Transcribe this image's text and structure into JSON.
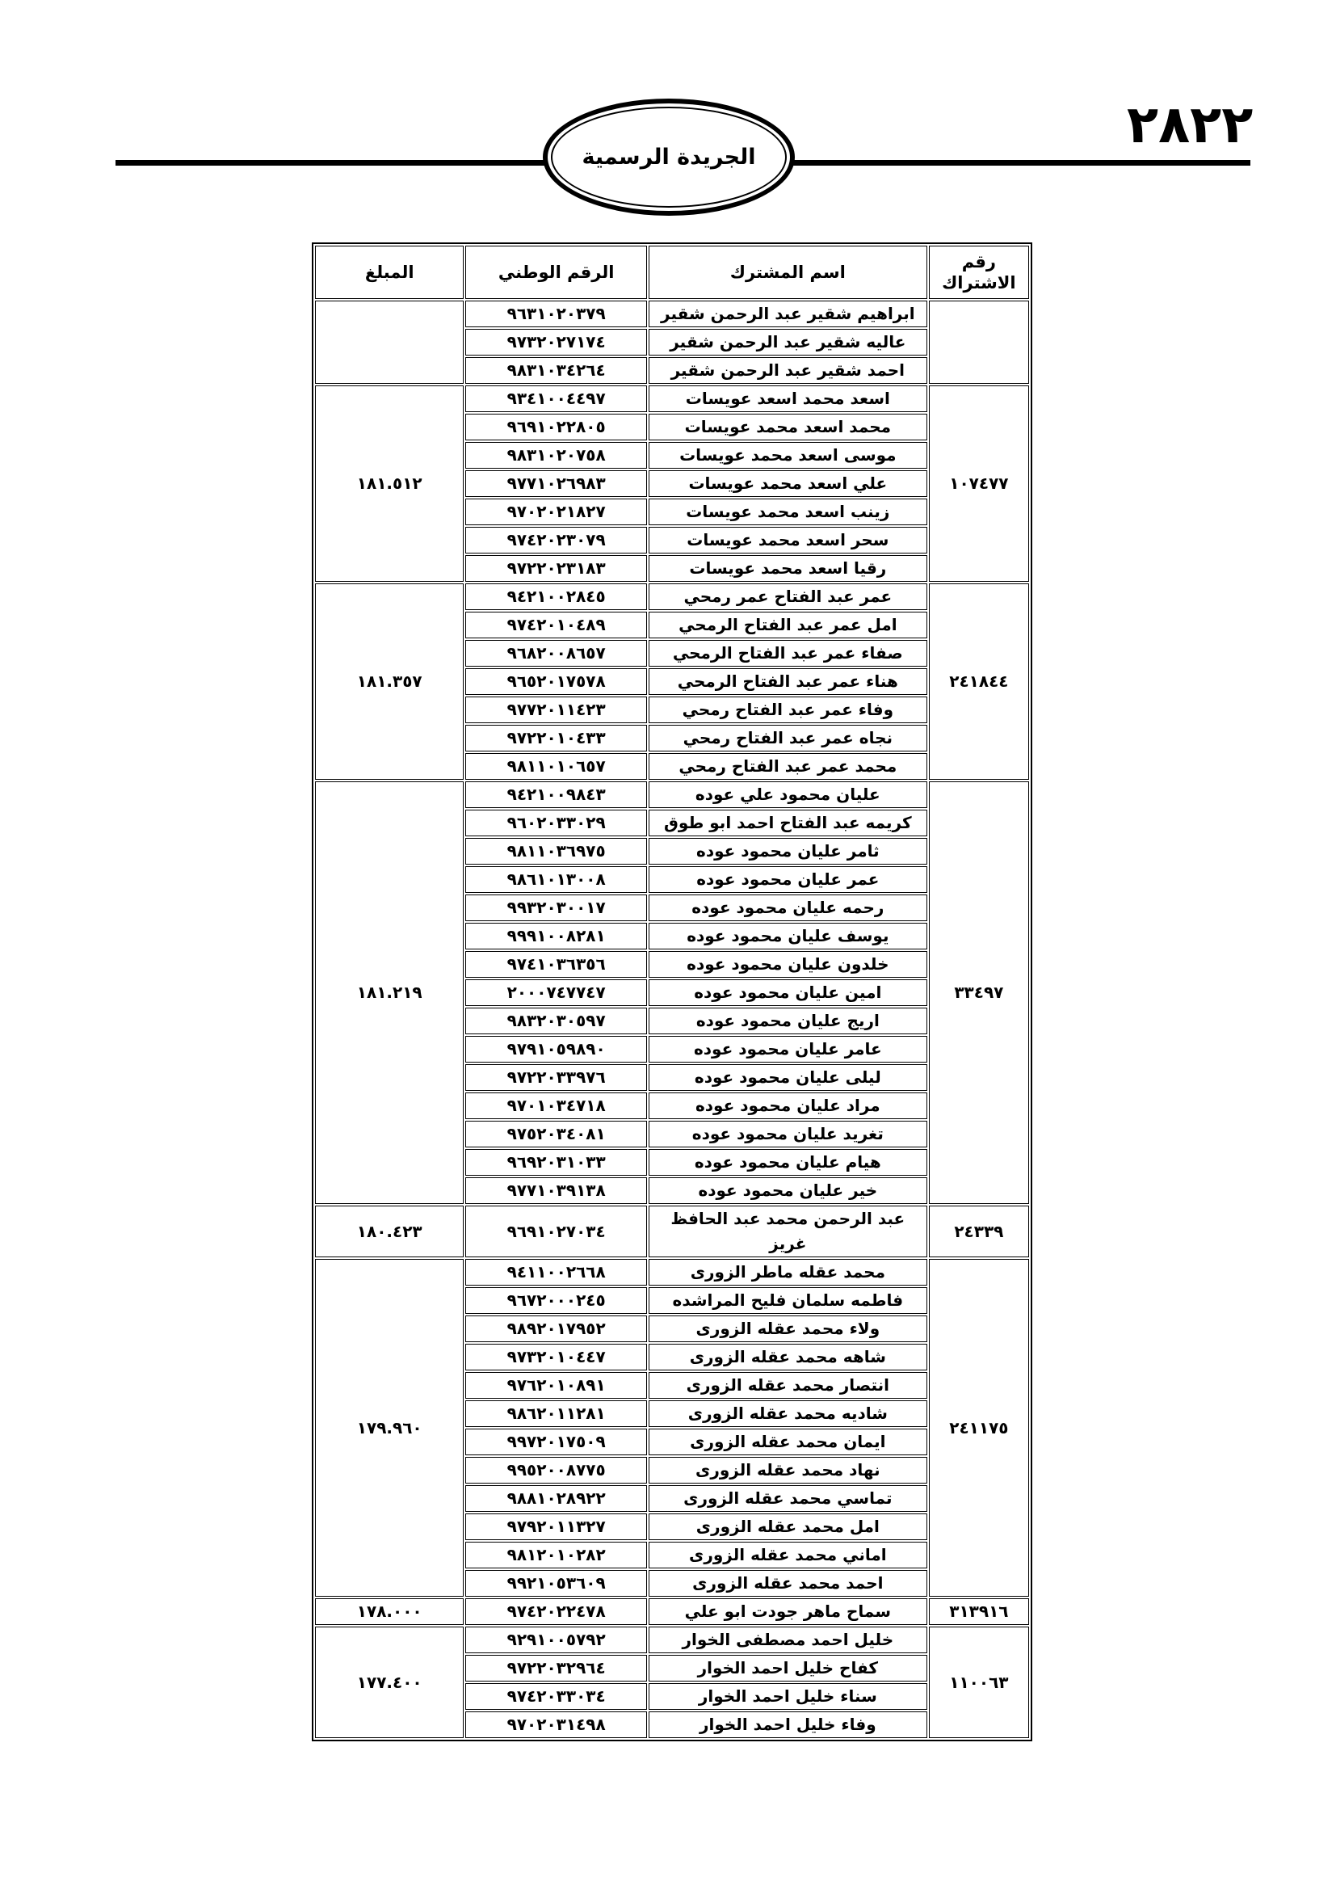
{
  "header": {
    "page_number": "٢٨٢٢",
    "gazette_title": "الجريدة الرسمية"
  },
  "table": {
    "columns": {
      "subscription": "رقم الاشتراك",
      "name": "اسم المشترك",
      "national_id": "الرقم الوطني",
      "amount": "المبلغ"
    },
    "groups": [
      {
        "subscription": "",
        "amount": "",
        "rows": [
          {
            "name": "ابراهيم شقير عبد الرحمن شقير",
            "national_id": "٩٦٣١٠٢٠٣٧٩"
          },
          {
            "name": "عاليه شقير عبد الرحمن شقير",
            "national_id": "٩٧٣٢٠٢٧١٧٤"
          },
          {
            "name": "احمد شقير عبد الرحمن شقير",
            "national_id": "٩٨٣١٠٣٤٢٦٤"
          }
        ]
      },
      {
        "subscription": "١٠٧٤٧٧",
        "amount": "١٨١.٥١٢",
        "rows": [
          {
            "name": "اسعد محمد اسعد عويسات",
            "national_id": "٩٣٤١٠٠٤٤٩٧"
          },
          {
            "name": "محمد اسعد محمد عويسات",
            "national_id": "٩٦٩١٠٢٢٨٠٥"
          },
          {
            "name": "موسى اسعد محمد عويسات",
            "national_id": "٩٨٣١٠٢٠٧٥٨"
          },
          {
            "name": "علي اسعد محمد عويسات",
            "national_id": "٩٧٧١٠٢٦٩٨٣"
          },
          {
            "name": "زينب اسعد محمد عويسات",
            "national_id": "٩٧٠٢٠٢١٨٢٧"
          },
          {
            "name": "سحر اسعد محمد عويسات",
            "national_id": "٩٧٤٢٠٢٣٠٧٩"
          },
          {
            "name": "رقيا اسعد محمد عويسات",
            "national_id": "٩٧٢٢٠٢٣١٨٣"
          }
        ]
      },
      {
        "subscription": "٢٤١٨٤٤",
        "amount": "١٨١.٣٥٧",
        "rows": [
          {
            "name": "عمر عبد الفتاح عمر رمحي",
            "national_id": "٩٤٢١٠٠٢٨٤٥"
          },
          {
            "name": "امل عمر عبد الفتاح الرمحي",
            "national_id": "٩٧٤٢٠١٠٤٨٩"
          },
          {
            "name": "صفاء عمر عبد الفتاح الرمحي",
            "national_id": "٩٦٨٢٠٠٨٦٥٧"
          },
          {
            "name": "هناء عمر عبد الفتاح الرمحي",
            "national_id": "٩٦٥٢٠١٧٥٧٨"
          },
          {
            "name": "وفاء عمر عبد الفتاح رمحي",
            "national_id": "٩٧٧٢٠١١٤٢٣"
          },
          {
            "name": "نجاه عمر عبد الفتاح رمحي",
            "national_id": "٩٧٢٢٠١٠٤٣٣"
          },
          {
            "name": "محمد عمر عبد الفتاح رمحي",
            "national_id": "٩٨١١٠١٠٦٥٧"
          }
        ]
      },
      {
        "subscription": "٣٣٤٩٧",
        "amount": "١٨١.٢١٩",
        "rows": [
          {
            "name": "عليان محمود علي عوده",
            "national_id": "٩٤٢١٠٠٩٨٤٣"
          },
          {
            "name": "كريمه عبد الفتاح احمد ابو طوق",
            "national_id": "٩٦٠٢٠٣٣٠٢٩"
          },
          {
            "name": "ثامر عليان محمود عوده",
            "national_id": "٩٨١١٠٣٦٩٧٥"
          },
          {
            "name": "عمر عليان محمود عوده",
            "national_id": "٩٨٦١٠١٣٠٠٨"
          },
          {
            "name": "رحمه عليان محمود عوده",
            "national_id": "٩٩٣٢٠٣٠٠١٧"
          },
          {
            "name": "يوسف عليان محمود عوده",
            "national_id": "٩٩٩١٠٠٨٢٨١"
          },
          {
            "name": "خلدون عليان محمود عوده",
            "national_id": "٩٧٤١٠٣٦٣٥٦"
          },
          {
            "name": "امين عليان محمود عوده",
            "national_id": "٢٠٠٠٧٤٧٧٤٧"
          },
          {
            "name": "اريج عليان محمود عوده",
            "national_id": "٩٨٣٢٠٣٠٥٩٧"
          },
          {
            "name": "عامر عليان محمود عوده",
            "national_id": "٩٧٩١٠٥٩٨٩٠"
          },
          {
            "name": "ليلى عليان محمود عوده",
            "national_id": "٩٧٢٢٠٣٣٩٧٦"
          },
          {
            "name": "مراد عليان محمود عوده",
            "national_id": "٩٧٠١٠٣٤٧١٨"
          },
          {
            "name": "تغريد عليان محمود عوده",
            "national_id": "٩٧٥٢٠٣٤٠٨١"
          },
          {
            "name": "هيام عليان محمود عوده",
            "national_id": "٩٦٩٢٠٣١٠٣٣"
          },
          {
            "name": "خير عليان محمود عوده",
            "national_id": "٩٧٧١٠٣٩١٣٨"
          }
        ]
      },
      {
        "subscription": "٢٤٣٣٩",
        "amount": "١٨٠.٤٢٣",
        "rows": [
          {
            "name": "عبد الرحمن محمد عبد الحافظ غريز",
            "national_id": "٩٦٩١٠٢٧٠٣٤"
          }
        ]
      },
      {
        "subscription": "٢٤١١٧٥",
        "amount": "١٧٩.٩٦٠",
        "rows": [
          {
            "name": "محمد عقله ماطر الزورى",
            "national_id": "٩٤١١٠٠٢٦٦٨"
          },
          {
            "name": "فاطمه سلمان فليح المراشده",
            "national_id": "٩٦٧٢٠٠٠٢٤٥"
          },
          {
            "name": "ولاء محمد عقله الزورى",
            "national_id": "٩٨٩٢٠١٧٩٥٢"
          },
          {
            "name": "شاهه محمد عقله الزورى",
            "national_id": "٩٧٣٢٠١٠٤٤٧"
          },
          {
            "name": "انتصار محمد عقله الزورى",
            "national_id": "٩٧٦٢٠١٠٨٩١"
          },
          {
            "name": "شاديه محمد عقله الزورى",
            "national_id": "٩٨٦٢٠١١٢٨١"
          },
          {
            "name": "ايمان محمد عقله الزورى",
            "national_id": "٩٩٧٢٠١٧٥٠٩"
          },
          {
            "name": "نهاد محمد عقله الزورى",
            "national_id": "٩٩٥٢٠٠٨٧٧٥"
          },
          {
            "name": "تماسي محمد عقله الزورى",
            "national_id": "٩٨٨١٠٢٨٩٢٢"
          },
          {
            "name": "امل محمد عقله الزورى",
            "national_id": "٩٧٩٢٠١١٣٢٧"
          },
          {
            "name": "اماني محمد عقله الزورى",
            "national_id": "٩٨١٢٠١٠٢٨٢"
          },
          {
            "name": "احمد محمد عقله الزورى",
            "national_id": "٩٩٢١٠٥٣٦٠٩"
          }
        ]
      },
      {
        "subscription": "٣١٣٩١٦",
        "amount": "١٧٨.٠٠٠",
        "rows": [
          {
            "name": "سماح ماهر جودت ابو علي",
            "national_id": "٩٧٤٢٠٢٢٤٧٨"
          }
        ]
      },
      {
        "subscription": "١١٠٠٦٣",
        "amount": "١٧٧.٤٠٠",
        "rows": [
          {
            "name": "خليل احمد مصطفى الخوار",
            "national_id": "٩٢٩١٠٠٥٧٩٢"
          },
          {
            "name": "كفاح خليل احمد الخوار",
            "national_id": "٩٧٢٢٠٣٢٩٦٤"
          },
          {
            "name": "سناء خليل احمد الخوار",
            "national_id": "٩٧٤٢٠٣٣٠٣٤"
          },
          {
            "name": "وفاء خليل احمد الخوار",
            "national_id": "٩٧٠٢٠٣١٤٩٨"
          }
        ]
      }
    ]
  }
}
